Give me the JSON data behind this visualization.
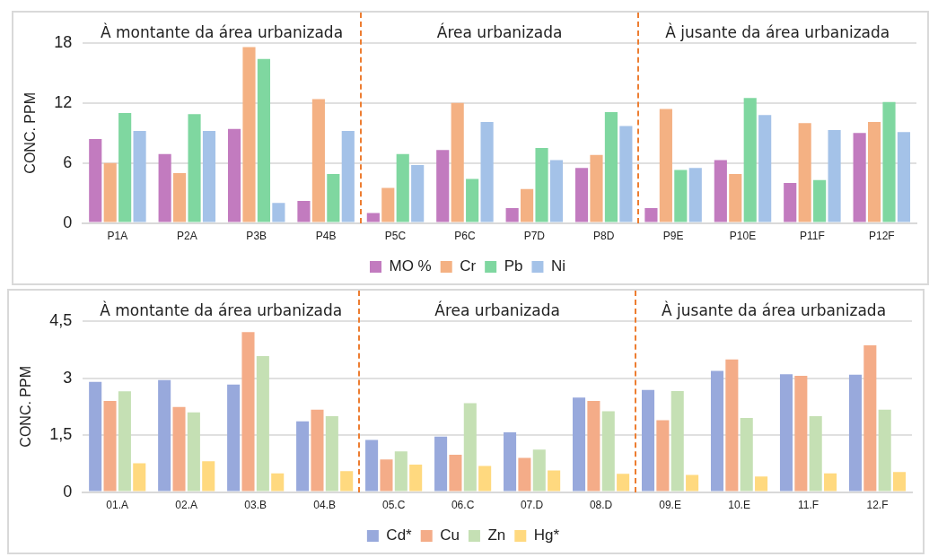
{
  "chart_data": [
    {
      "type": "bar",
      "ylabel": "CONC. PPM",
      "categories": [
        "P1A",
        "P2A",
        "P3B",
        "P4B",
        "P5C",
        "P6C",
        "P7D",
        "P8D",
        "P9E",
        "P10E",
        "P11F",
        "P12F"
      ],
      "series": [
        {
          "name": "MO %",
          "color": "#c27bbf",
          "values": [
            8.4,
            6.9,
            9.4,
            2.2,
            1.0,
            7.3,
            1.5,
            5.5,
            1.5,
            6.3,
            4.0,
            9.0
          ]
        },
        {
          "name": "Cr",
          "color": "#f4b183",
          "values": [
            6.0,
            5.0,
            17.6,
            12.4,
            3.5,
            12.0,
            3.4,
            6.8,
            11.4,
            4.9,
            10.0,
            10.1
          ]
        },
        {
          "name": "Pb",
          "color": "#7fd7a0",
          "values": [
            11.0,
            10.9,
            16.4,
            4.9,
            6.9,
            4.4,
            7.5,
            11.1,
            5.3,
            12.5,
            4.3,
            12.1
          ]
        },
        {
          "name": "Ni",
          "color": "#a4c2e8",
          "values": [
            9.2,
            9.2,
            2.0,
            9.2,
            5.8,
            10.1,
            6.3,
            9.7,
            5.5,
            10.8,
            9.3,
            9.1
          ]
        }
      ],
      "ylim": [
        0,
        18
      ],
      "yticks": [
        0,
        6,
        12,
        18
      ],
      "grid": "y",
      "legend": "bottom",
      "annotations": [
        "À montante da área urbanizada",
        "Área urbanizada",
        "À jusante da área urbanizada"
      ]
    },
    {
      "type": "bar",
      "ylabel": "CONC. PPM",
      "categories": [
        "01.A",
        "02.A",
        "03.B",
        "04.B",
        "05.C",
        "06.C",
        "07.D",
        "08.D",
        "09.E",
        "10.E",
        "11.F",
        "12.F"
      ],
      "series": [
        {
          "name": "Cd*",
          "color": "#98a9dc",
          "values": [
            2.9,
            2.95,
            2.83,
            1.86,
            1.37,
            1.46,
            1.57,
            2.49,
            2.69,
            3.19,
            3.1,
            3.09
          ]
        },
        {
          "name": "Cu",
          "color": "#f4ac88",
          "values": [
            2.4,
            2.24,
            4.21,
            2.17,
            0.86,
            0.98,
            0.9,
            2.4,
            1.89,
            3.49,
            3.06,
            3.86
          ]
        },
        {
          "name": "Zn",
          "color": "#c5e0b4",
          "values": [
            2.65,
            2.1,
            3.58,
            2.0,
            1.07,
            2.34,
            1.12,
            2.13,
            2.66,
            1.95,
            2.0,
            2.17
          ]
        },
        {
          "name": "Hg*",
          "color": "#ffd97f",
          "values": [
            0.76,
            0.81,
            0.49,
            0.55,
            0.72,
            0.69,
            0.57,
            0.48,
            0.45,
            0.41,
            0.49,
            0.53
          ]
        }
      ],
      "ylim": [
        0,
        4.5
      ],
      "yticks": [
        0,
        {
          "value": 1.5,
          "label": "1,5"
        },
        3,
        {
          "value": 4.5,
          "label": "4,5"
        }
      ],
      "grid": "y",
      "legend": "bottom",
      "annotations": [
        "À montante da área urbanizada",
        "Área urbanizada",
        "À jusante da área urbanizada"
      ]
    }
  ]
}
